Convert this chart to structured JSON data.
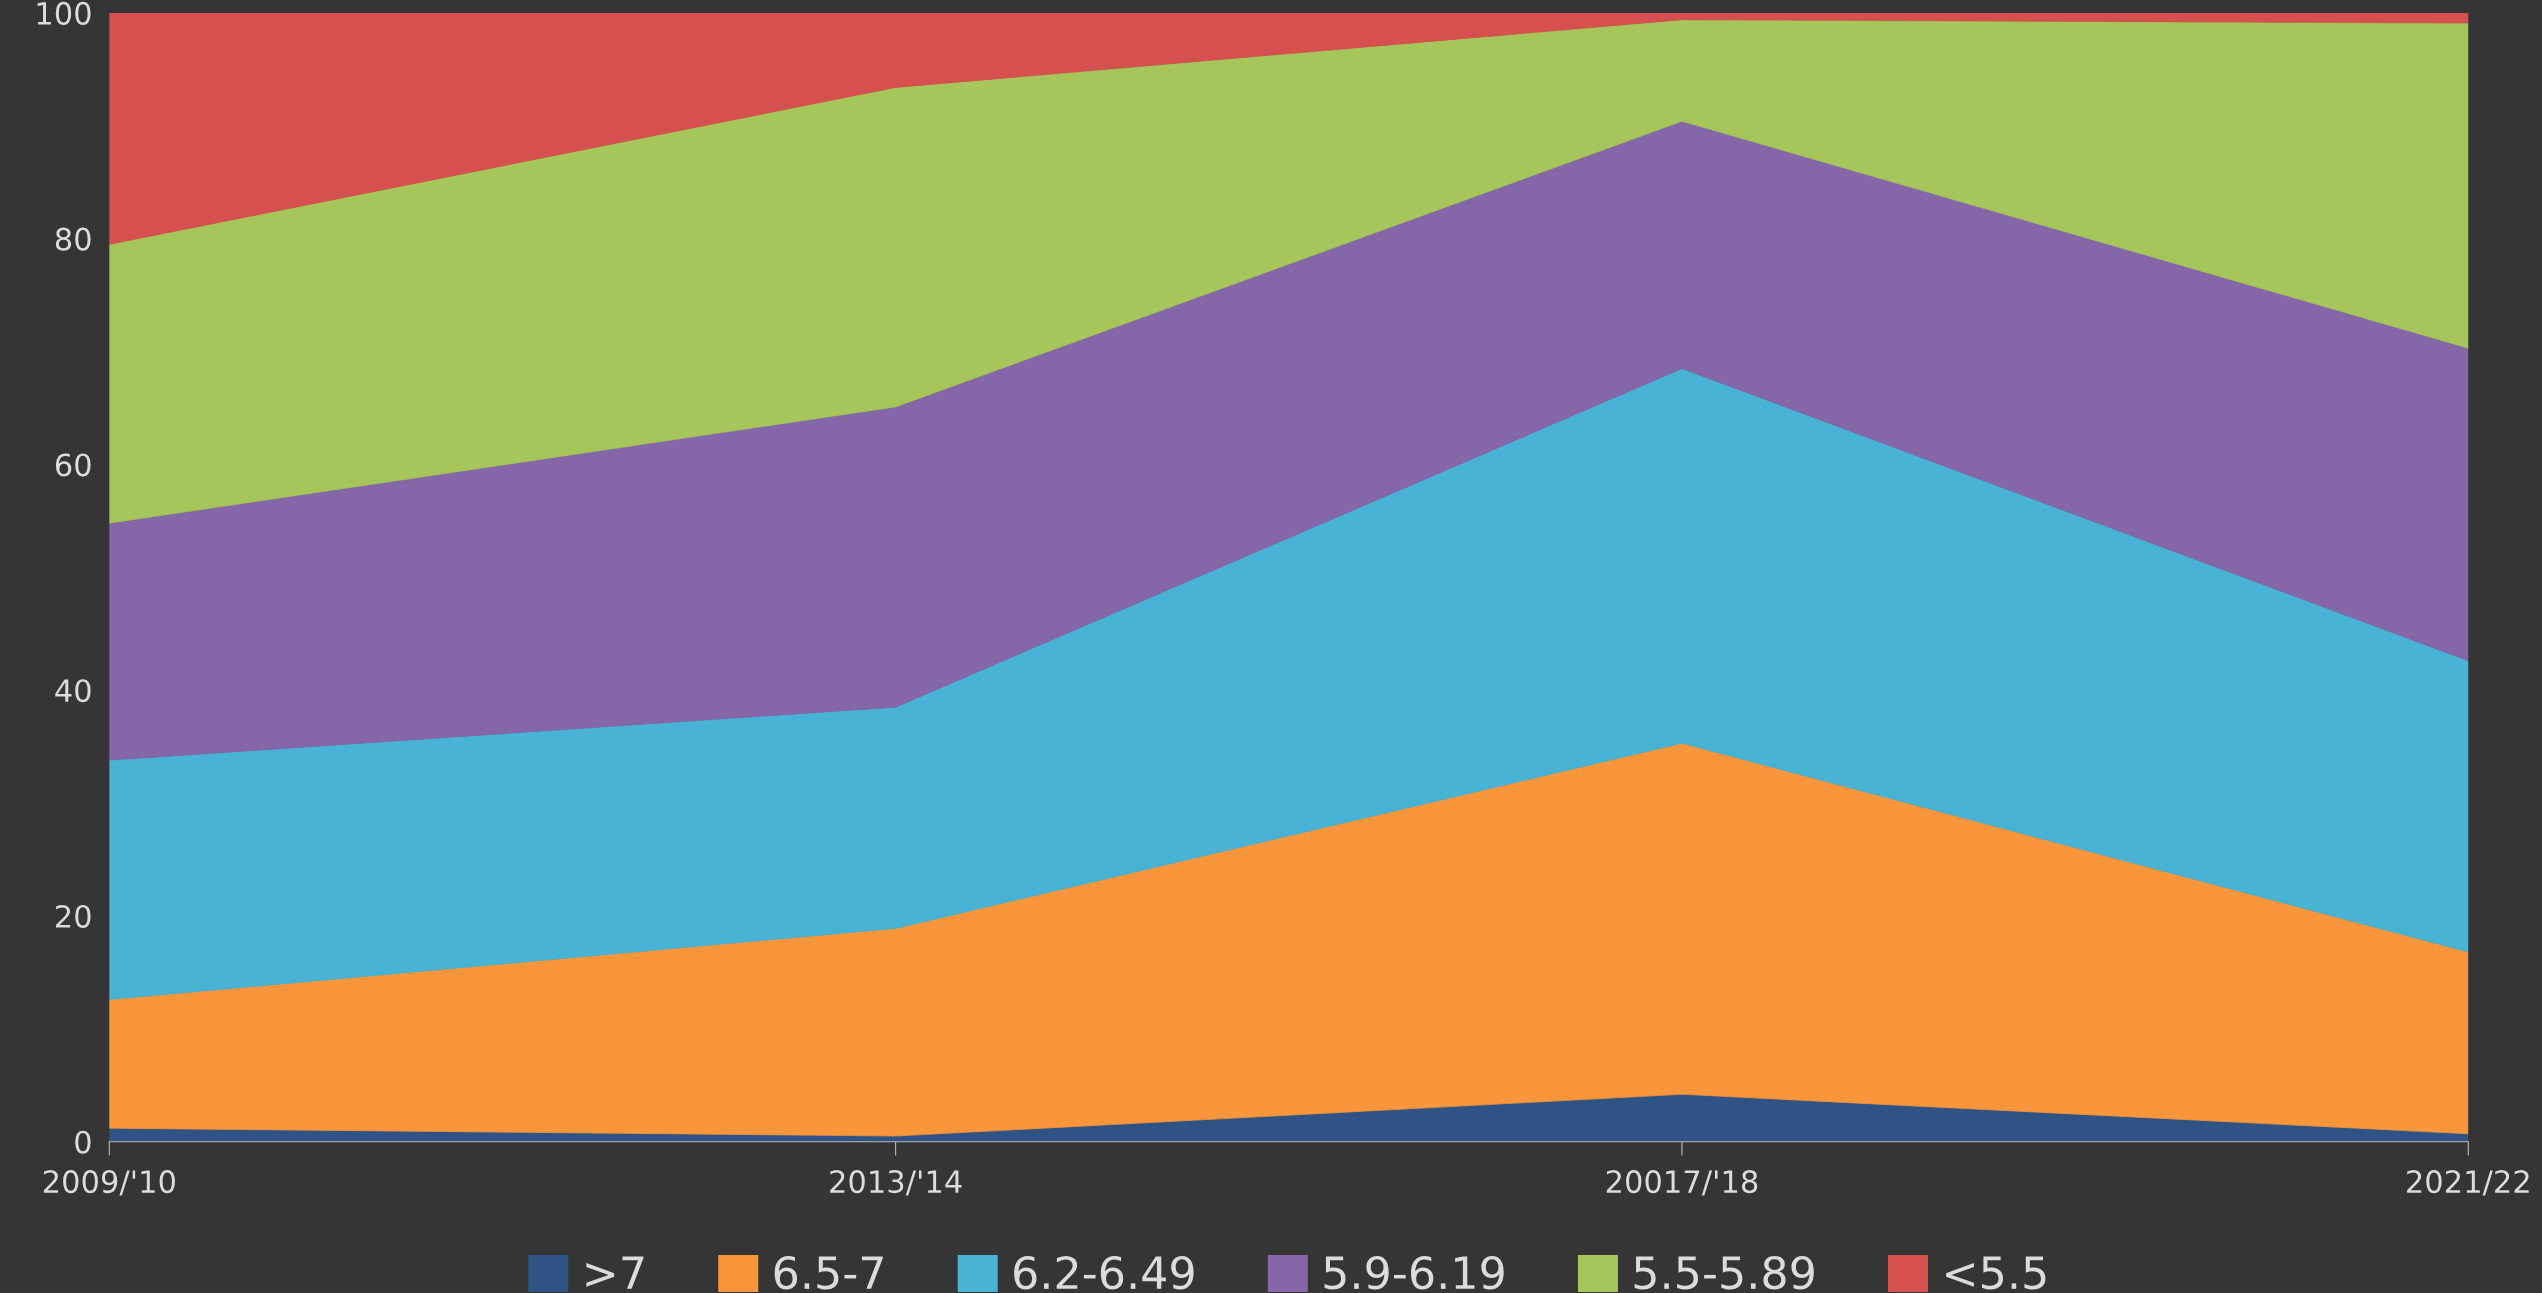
{
  "chart_data": {
    "type": "area",
    "stacked": true,
    "categories": [
      "2009/'10",
      "2013/'14",
      "20017/'18",
      "2021/22"
    ],
    "series": [
      {
        "name": ">7",
        "color": "#2e5384",
        "values": [
          1.2,
          0.5,
          4.2,
          0.7
        ]
      },
      {
        "name": "6.5-7",
        "color": "#f9963c",
        "values": [
          11.4,
          18.4,
          31.1,
          16.1
        ]
      },
      {
        "name": "6.2-6.49",
        "color": "#48b3d4",
        "values": [
          21.2,
          19.6,
          33.2,
          25.8
        ]
      },
      {
        "name": "5.9-6.19",
        "color": "#8566a8",
        "values": [
          21.0,
          26.6,
          21.9,
          27.7
        ]
      },
      {
        "name": "5.5-5.89",
        "color": "#a6c65c",
        "values": [
          24.7,
          28.3,
          9.0,
          28.8
        ]
      },
      {
        "name": "<5.5",
        "color": "#d5504e",
        "values": [
          20.5,
          6.6,
          0.6,
          0.9
        ]
      }
    ],
    "ylim": [
      0,
      100
    ],
    "yticks": [
      0,
      20,
      40,
      60,
      80,
      100
    ],
    "grid": false,
    "legend": "bottom"
  }
}
